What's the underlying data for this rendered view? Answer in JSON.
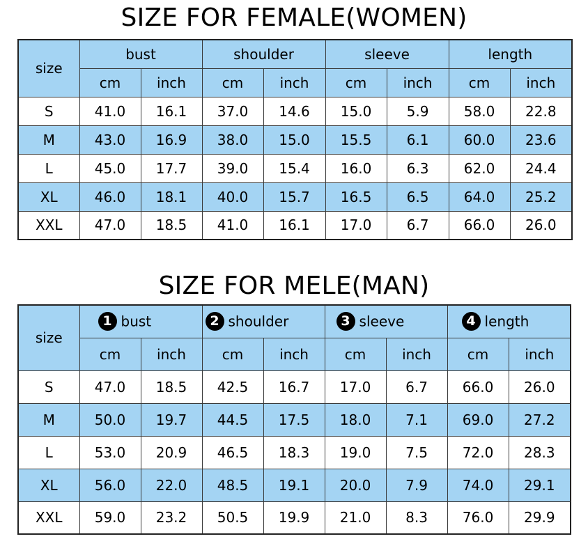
{
  "women": {
    "title": "SIZE FOR FEMALE(WOMEN)",
    "size_label": "size",
    "groups": [
      "bust",
      "shoulder",
      "sleeve",
      "length"
    ],
    "units": [
      "cm",
      "inch",
      "cm",
      "inch",
      "cm",
      "inch",
      "cm",
      "inch"
    ],
    "rows": [
      [
        "S",
        "41.0",
        "16.1",
        "37.0",
        "14.6",
        "15.0",
        "5.9",
        "58.0",
        "22.8"
      ],
      [
        "M",
        "43.0",
        "16.9",
        "38.0",
        "15.0",
        "15.5",
        "6.1",
        "60.0",
        "23.6"
      ],
      [
        "L",
        "45.0",
        "17.7",
        "39.0",
        "15.4",
        "16.0",
        "6.3",
        "62.0",
        "24.4"
      ],
      [
        "XL",
        "46.0",
        "18.1",
        "40.0",
        "15.7",
        "16.5",
        "6.5",
        "64.0",
        "25.2"
      ],
      [
        "XXL",
        "47.0",
        "18.5",
        "41.0",
        "16.1",
        "17.0",
        "6.7",
        "66.0",
        "26.0"
      ]
    ]
  },
  "men": {
    "title": "SIZE FOR MELE(MAN)",
    "size_label": "size",
    "groups": [
      {
        "num": "1",
        "label": "bust"
      },
      {
        "num": "2",
        "label": "shoulder"
      },
      {
        "num": "3",
        "label": "sleeve"
      },
      {
        "num": "4",
        "label": "length"
      }
    ],
    "units": [
      "cm",
      "inch",
      "cm",
      "inch",
      "cm",
      "inch",
      "cm",
      "inch"
    ],
    "rows": [
      [
        "S",
        "47.0",
        "18.5",
        "42.5",
        "16.7",
        "17.0",
        "6.7",
        "66.0",
        "26.0"
      ],
      [
        "M",
        "50.0",
        "19.7",
        "44.5",
        "17.5",
        "18.0",
        "7.1",
        "69.0",
        "27.2"
      ],
      [
        "L",
        "53.0",
        "20.9",
        "46.5",
        "18.3",
        "19.0",
        "7.5",
        "72.0",
        "28.3"
      ],
      [
        "XL",
        "56.0",
        "22.0",
        "48.5",
        "19.1",
        "20.0",
        "7.9",
        "74.0",
        "29.1"
      ],
      [
        "XXL",
        "59.0",
        "23.2",
        "50.5",
        "19.9",
        "21.0",
        "8.3",
        "76.0",
        "29.9"
      ]
    ]
  },
  "colors": {
    "header_blue": "#a4d4f3",
    "border": "#3a3a3a"
  }
}
